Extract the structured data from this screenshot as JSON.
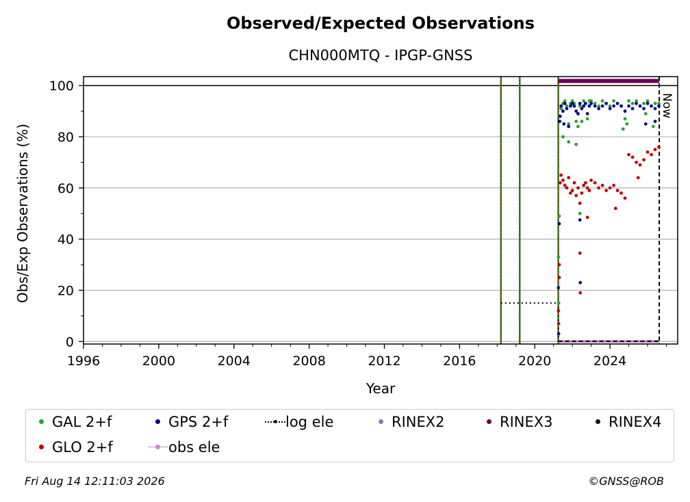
{
  "chart_data": {
    "type": "scatter",
    "title": "Observed/Expected Observations",
    "subtitle": "CHN000MTQ - IPGP-GNSS",
    "xlabel": "Year",
    "ylabel": "Obs/Exp Observations (%)",
    "xlim": [
      1996,
      2027.6
    ],
    "ylim": [
      -1,
      103.5
    ],
    "xticks": [
      "1996",
      "2000",
      "2004",
      "2008",
      "2012",
      "2016",
      "2020",
      "2024"
    ],
    "yticks": [
      "0",
      "20",
      "40",
      "60",
      "80",
      "100"
    ],
    "grid": "horizontal",
    "now_label": "Now",
    "now_year": 2026.62,
    "reference_line": 100,
    "event_lines": [
      2018.2,
      2019.2,
      2021.25
    ],
    "log_ele": {
      "x": [
        2018.2,
        2021.25
      ],
      "y": [
        15,
        15
      ]
    },
    "rinex3_bar": {
      "x": [
        2021.25,
        2026.62
      ],
      "y": 101.8
    },
    "obs_ele_bar": {
      "x": [
        2021.25,
        2026.62
      ],
      "y": 0
    },
    "series": [
      {
        "name": "GAL 2+f",
        "color": "#2ca02c",
        "x": [
          2021.26,
          2021.3,
          2021.35,
          2021.4,
          2021.5,
          2021.6,
          2021.7,
          2021.8,
          2021.9,
          2022.0,
          2022.1,
          2022.2,
          2022.3,
          2022.4,
          2022.5,
          2022.6,
          2022.7,
          2022.8,
          2022.9,
          2023.0,
          2023.2,
          2023.4,
          2023.6,
          2023.8,
          2024.0,
          2024.2,
          2024.4,
          2024.6,
          2024.8,
          2025.0,
          2025.2,
          2025.4,
          2025.6,
          2025.8,
          2026.0,
          2026.2,
          2026.4,
          2026.6,
          2021.27,
          2021.5,
          2021.8,
          2022.2,
          2022.4,
          2024.7,
          2024.9,
          2025.9,
          2026.3
        ],
        "y": [
          33,
          49,
          86,
          91,
          93,
          94,
          92,
          85,
          93,
          94,
          93,
          86,
          84,
          92,
          86,
          94,
          93,
          87,
          94,
          94,
          93,
          92,
          94,
          93,
          92,
          94,
          93,
          92,
          87,
          94,
          93,
          94,
          92,
          93,
          94,
          92,
          93,
          93,
          15,
          80,
          78,
          77,
          50,
          83,
          85,
          89,
          84
        ]
      },
      {
        "name": "GPS 2+f",
        "color": "#00008b",
        "x": [
          2021.26,
          2021.3,
          2021.35,
          2021.4,
          2021.5,
          2021.6,
          2021.7,
          2021.8,
          2021.9,
          2022.0,
          2022.1,
          2022.2,
          2022.3,
          2022.4,
          2022.5,
          2022.6,
          2022.7,
          2022.8,
          2022.9,
          2023.0,
          2023.2,
          2023.4,
          2023.6,
          2023.8,
          2024.0,
          2024.2,
          2024.4,
          2024.6,
          2024.8,
          2025.0,
          2025.2,
          2025.4,
          2025.6,
          2025.8,
          2026.0,
          2026.2,
          2026.4,
          2026.6,
          2021.27,
          2021.3,
          2022.4,
          2022.42,
          2021.55,
          2025.9,
          2026.4
        ],
        "y": [
          21,
          46,
          88,
          92,
          90,
          93,
          91,
          84,
          92,
          93,
          92,
          90,
          89,
          93,
          91,
          92,
          93,
          89,
          92,
          93,
          92,
          91,
          92,
          93,
          91,
          92,
          93,
          92,
          90,
          92,
          91,
          93,
          92,
          91,
          93,
          92,
          91,
          92,
          3,
          86,
          47.5,
          23,
          85,
          85,
          86
        ]
      },
      {
        "name": "GLO 2+f",
        "color": "#c00000",
        "x": [
          2021.26,
          2021.3,
          2021.35,
          2021.4,
          2021.5,
          2021.6,
          2021.7,
          2021.8,
          2021.9,
          2022.0,
          2022.1,
          2022.2,
          2022.3,
          2022.4,
          2022.5,
          2022.6,
          2022.7,
          2022.8,
          2022.9,
          2023.0,
          2023.2,
          2023.4,
          2023.6,
          2023.8,
          2024.0,
          2024.2,
          2024.4,
          2024.6,
          2024.8,
          2025.0,
          2025.2,
          2025.4,
          2025.6,
          2025.8,
          2026.0,
          2026.2,
          2026.4,
          2026.6,
          2021.27,
          2021.3,
          2022.4,
          2022.42,
          2022.8,
          2024.3,
          2025.5
        ],
        "y": [
          12,
          30,
          62,
          65,
          63,
          61,
          60,
          64,
          58,
          59,
          62,
          57,
          60,
          54,
          58,
          61,
          62,
          60,
          59,
          63,
          62,
          60,
          61,
          59,
          60,
          61,
          59,
          58,
          56,
          73,
          72,
          70,
          69,
          71,
          74,
          73,
          75,
          76,
          7,
          25,
          34.5,
          19,
          48.5,
          52,
          64
        ]
      }
    ]
  },
  "legend": {
    "items": [
      {
        "label": "GAL 2+f",
        "color": "#2ca02c",
        "marker": "dot"
      },
      {
        "label": "GPS 2+f",
        "color": "#00008b",
        "marker": "dot"
      },
      {
        "label": "log ele",
        "color": "#000000",
        "marker": "dotted-line"
      },
      {
        "label": "RINEX2",
        "color": "#8080c0",
        "marker": "dot"
      },
      {
        "label": "RINEX3",
        "color": "#6a0050",
        "marker": "dot"
      },
      {
        "label": "RINEX4",
        "color": "#2a0a20",
        "marker": "dot"
      },
      {
        "label": "GLO 2+f",
        "color": "#c00000",
        "marker": "dot"
      },
      {
        "label": "obs ele",
        "color": "#cc88cc",
        "marker": "line-dot"
      }
    ]
  },
  "footer": {
    "timestamp": "Fri Aug 14 12:11:03 2026",
    "credit": "©GNSS@ROB"
  }
}
